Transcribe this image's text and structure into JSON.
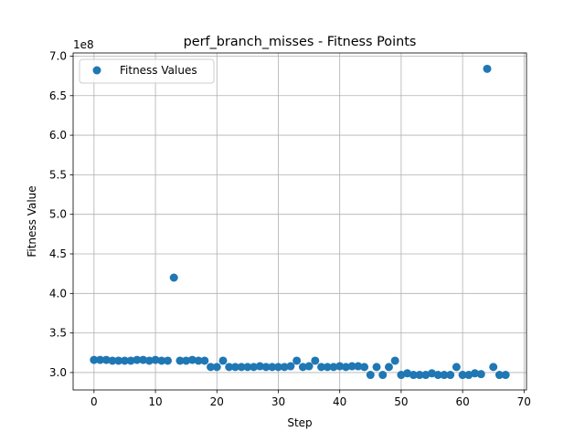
{
  "chart_data": {
    "type": "scatter",
    "title": "perf_branch_misses - Fitness Points",
    "xlabel": "Step",
    "ylabel": "Fitness Value",
    "y_offset_label": "1e8",
    "xlim": [
      -3.4,
      70.4
    ],
    "ylim": [
      2.78,
      7.04
    ],
    "y_scale_factor": 100000000,
    "grid": true,
    "legend_position": "top-left",
    "x_ticks": [
      "0",
      "10",
      "20",
      "30",
      "40",
      "50",
      "60",
      "70"
    ],
    "y_ticks": [
      "3.0",
      "3.5",
      "4.0",
      "4.5",
      "5.0",
      "5.5",
      "6.0",
      "6.5",
      "7.0"
    ],
    "colors": {
      "series": "#1f77b4",
      "grid": "#b0b0b0",
      "axis": "#000000"
    },
    "series": [
      {
        "name": "Fitness Values",
        "x": [
          0,
          1,
          2,
          3,
          4,
          5,
          6,
          7,
          8,
          9,
          10,
          11,
          12,
          13,
          14,
          15,
          16,
          17,
          18,
          19,
          20,
          21,
          22,
          23,
          24,
          25,
          26,
          27,
          28,
          29,
          30,
          31,
          32,
          33,
          34,
          35,
          36,
          37,
          38,
          39,
          40,
          41,
          42,
          43,
          44,
          45,
          46,
          47,
          48,
          49,
          50,
          51,
          52,
          53,
          54,
          55,
          56,
          57,
          58,
          59,
          60,
          61,
          62,
          63,
          64,
          65,
          66,
          67
        ],
        "y": [
          3.16,
          3.16,
          3.16,
          3.15,
          3.15,
          3.15,
          3.15,
          3.16,
          3.16,
          3.15,
          3.16,
          3.15,
          3.15,
          4.2,
          3.15,
          3.15,
          3.16,
          3.15,
          3.15,
          3.07,
          3.07,
          3.15,
          3.07,
          3.07,
          3.07,
          3.07,
          3.07,
          3.08,
          3.07,
          3.07,
          3.07,
          3.07,
          3.08,
          3.15,
          3.07,
          3.08,
          3.15,
          3.07,
          3.07,
          3.07,
          3.08,
          3.07,
          3.08,
          3.08,
          3.07,
          2.97,
          3.07,
          2.97,
          3.07,
          3.15,
          2.97,
          2.99,
          2.97,
          2.97,
          2.97,
          2.99,
          2.97,
          2.97,
          2.97,
          3.07,
          2.97,
          2.97,
          2.99,
          2.98,
          6.84,
          3.07,
          2.97,
          2.97
        ]
      }
    ]
  }
}
